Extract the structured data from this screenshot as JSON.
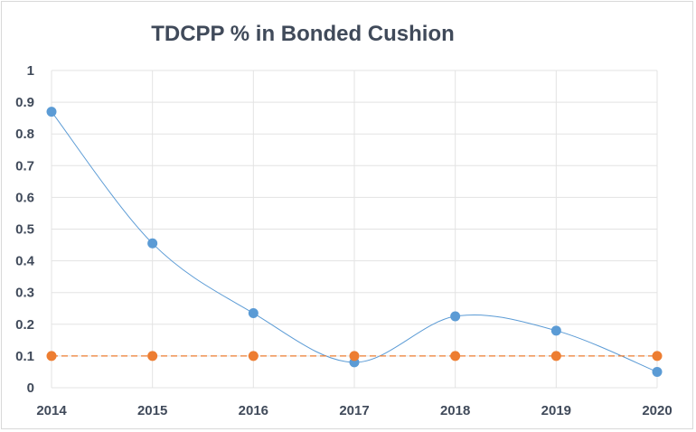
{
  "chart_data": {
    "type": "line",
    "title": "TDCPP % in Bonded Cushion",
    "xlabel": "",
    "ylabel": "",
    "categories": [
      "2014",
      "2015",
      "2016",
      "2017",
      "2018",
      "2019",
      "2020"
    ],
    "ylim": [
      0,
      1
    ],
    "yticks": [
      "0",
      "0.1",
      "0.2",
      "0.3",
      "0.4",
      "0.5",
      "0.6",
      "0.7",
      "0.8",
      "0.9",
      "1"
    ],
    "grid": true,
    "legend": "none",
    "series": [
      {
        "values": [
          0.87,
          0.455,
          0.235,
          0.08,
          0.225,
          0.18,
          0.05
        ],
        "color": "#5b9bd5",
        "line_style": "smooth",
        "marker": "circle"
      },
      {
        "values": [
          0.1,
          0.1,
          0.1,
          0.1,
          0.1,
          0.1,
          0.1
        ],
        "color": "#ed7d31",
        "line_style": "dashed",
        "marker": "circle"
      }
    ]
  }
}
